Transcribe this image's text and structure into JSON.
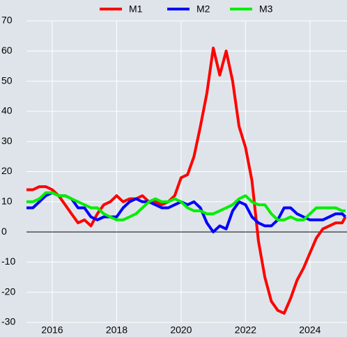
{
  "chart_data": {
    "type": "line",
    "x": [
      2015.2,
      2015.4,
      2015.6,
      2015.8,
      2016.0,
      2016.2,
      2016.4,
      2016.6,
      2016.8,
      2017.0,
      2017.2,
      2017.4,
      2017.6,
      2017.8,
      2018.0,
      2018.2,
      2018.4,
      2018.6,
      2018.8,
      2019.0,
      2019.2,
      2019.4,
      2019.6,
      2019.8,
      2020.0,
      2020.2,
      2020.4,
      2020.6,
      2020.8,
      2021.0,
      2021.2,
      2021.4,
      2021.6,
      2021.8,
      2022.0,
      2022.2,
      2022.4,
      2022.6,
      2022.8,
      2023.0,
      2023.2,
      2023.4,
      2023.6,
      2023.8,
      2024.0,
      2024.2,
      2024.4,
      2024.6,
      2024.8,
      2025.0,
      2025.1
    ],
    "series": [
      {
        "name": "M1",
        "color": "#ff0000",
        "values": [
          14,
          14,
          15,
          15,
          14,
          12,
          9,
          6,
          3,
          4,
          2,
          6,
          9,
          10,
          12,
          10,
          11,
          11,
          12,
          10,
          10,
          9,
          10,
          12,
          18,
          19,
          25,
          35,
          46,
          61,
          52,
          60,
          50,
          35,
          28,
          17,
          -3,
          -15,
          -23,
          -26,
          -27,
          -22,
          -16,
          -12,
          -7,
          -2,
          1,
          2,
          3,
          3,
          5
        ]
      },
      {
        "name": "M2",
        "color": "#0000ff",
        "values": [
          8,
          8,
          10,
          12,
          13,
          12,
          12,
          11,
          8,
          8,
          5,
          4,
          5,
          5,
          5,
          8,
          10,
          11,
          10,
          10,
          9,
          8,
          8,
          9,
          10,
          9,
          10,
          8,
          3,
          0,
          2,
          1,
          7,
          10,
          9,
          5,
          3,
          2,
          2,
          4,
          8,
          8,
          6,
          5,
          4,
          4,
          4,
          5,
          6,
          6,
          5
        ]
      },
      {
        "name": "M3",
        "color": "#00ee00",
        "values": [
          10,
          10,
          11,
          13,
          13,
          12,
          12,
          11,
          10,
          9,
          8,
          8,
          6,
          5,
          4,
          4,
          5,
          6,
          8,
          10,
          11,
          10,
          10,
          11,
          10,
          8,
          7,
          7,
          6,
          6,
          7,
          8,
          9,
          11,
          12,
          10,
          9,
          9,
          6,
          4,
          4,
          5,
          4,
          4,
          6,
          8,
          8,
          8,
          8,
          7,
          7
        ]
      }
    ],
    "xlim": [
      2015.2,
      2025.15
    ],
    "xticks": [
      2016,
      2018,
      2020,
      2022,
      2024
    ],
    "ylim": [
      -30,
      70
    ],
    "yticks": [
      -30,
      -20,
      -10,
      0,
      10,
      20,
      30,
      40,
      50,
      60,
      70
    ],
    "grid": true,
    "legend": "top"
  }
}
